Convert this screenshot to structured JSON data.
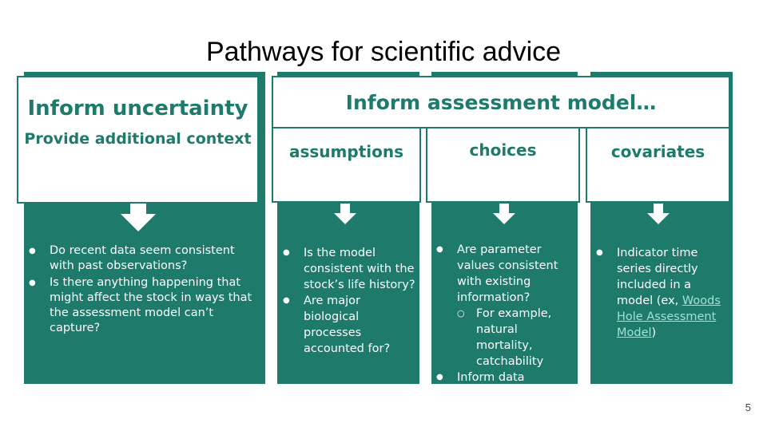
{
  "slide": {
    "title": "Pathways for scientific advice",
    "page_number": "5"
  },
  "col1": {
    "heading": "Inform uncertainty",
    "subheading": "Provide additional context",
    "bullets": [
      "Do recent data seem consistent with past observations?",
      "Is there anything happening that might affect the stock in ways that the assessment model can’t capture?"
    ]
  },
  "model_header": "Inform assessment model…",
  "col2": {
    "heading": "assumptions",
    "bullets": [
      "Is the model consistent with the stock’s life history?",
      "Are major biological processes accounted for?"
    ]
  },
  "col3": {
    "heading": "choices",
    "bullet1": "Are parameter values consistent with existing information?",
    "sub1": "For example, natural mortality, catchability",
    "bullet2": "Inform data conditioning"
  },
  "col4": {
    "heading": "covariates",
    "text_before": "Indicator time series directly included in a model (ex, ",
    "link": "Woods Hole Assessment Model",
    "text_after": ")"
  },
  "colors": {
    "teal": "#1e7a6b",
    "white": "#ffffff",
    "link": "#9de3d6"
  }
}
